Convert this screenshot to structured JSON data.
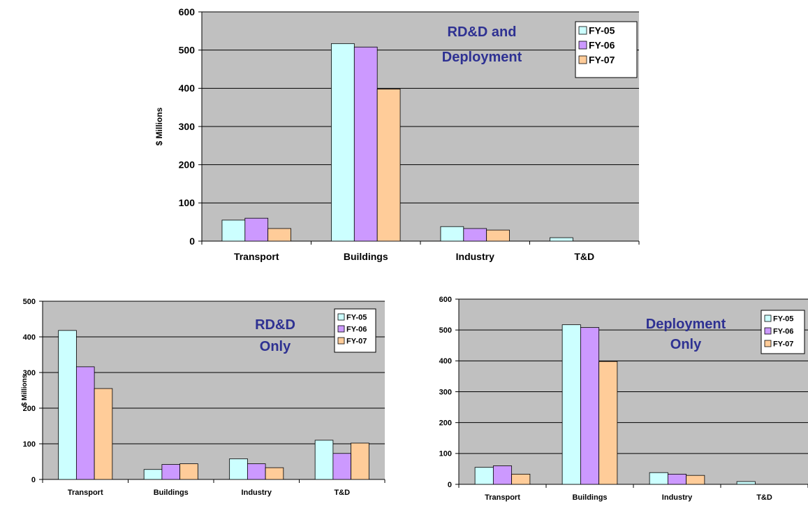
{
  "colors": {
    "plot_bg": "#c0c0c0",
    "grid": "#000000",
    "annotation": "#2e3192",
    "series": [
      "#ccffff",
      "#cc99ff",
      "#ffcc99"
    ]
  },
  "chart_data": [
    {
      "type": "bar",
      "annotation": [
        "RD&D and",
        "Deployment"
      ],
      "ylabel": "$ Millions",
      "ylim": [
        0,
        600
      ],
      "yticks": [
        "0",
        "100",
        "200",
        "300",
        "400",
        "500",
        "600"
      ],
      "categories": [
        "Transport",
        "Buildings",
        "Industry",
        "T&D"
      ],
      "legend_position": "top-right",
      "grid": true,
      "series": [
        {
          "name": "FY-05",
          "values": [
            55,
            517,
            38,
            9
          ]
        },
        {
          "name": "FY-06",
          "values": [
            60,
            508,
            33,
            0
          ]
        },
        {
          "name": "FY-07",
          "values": [
            33,
            398,
            29,
            0
          ]
        }
      ]
    },
    {
      "type": "bar",
      "annotation": [
        "RD&D",
        "Only"
      ],
      "ylabel": "$ Millions",
      "ylim": [
        0,
        500
      ],
      "yticks": [
        "0",
        "100",
        "200",
        "300",
        "400",
        "500"
      ],
      "categories": [
        "Transport",
        "Buildings",
        "Industry",
        "T&D"
      ],
      "legend_position": "top-right",
      "grid": true,
      "series": [
        {
          "name": "FY-05",
          "values": [
            418,
            28,
            58,
            110
          ]
        },
        {
          "name": "FY-06",
          "values": [
            316,
            42,
            44,
            73
          ]
        },
        {
          "name": "FY-07",
          "values": [
            255,
            44,
            33,
            102
          ]
        }
      ]
    },
    {
      "type": "bar",
      "annotation": [
        "Deployment",
        "Only"
      ],
      "ylabel": "",
      "ylim": [
        0,
        600
      ],
      "yticks": [
        "0",
        "100",
        "200",
        "300",
        "400",
        "500",
        "600"
      ],
      "categories": [
        "Transport",
        "Buildings",
        "Industry",
        "T&D"
      ],
      "legend_position": "top-right",
      "grid": true,
      "series": [
        {
          "name": "FY-05",
          "values": [
            55,
            517,
            38,
            9
          ]
        },
        {
          "name": "FY-06",
          "values": [
            60,
            508,
            33,
            0
          ]
        },
        {
          "name": "FY-07",
          "values": [
            33,
            398,
            29,
            0
          ]
        }
      ]
    }
  ]
}
